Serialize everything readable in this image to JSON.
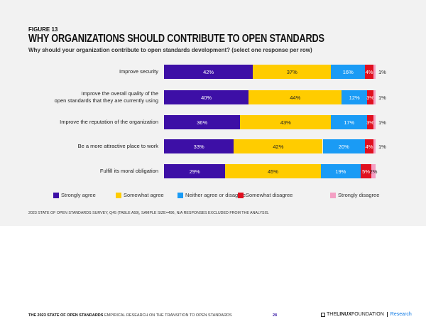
{
  "figure_label": "FIGURE 13",
  "footer": {
    "bold": "THE 2023 STATE OF OPEN STANDARDS",
    "rest": "EMPIRICAL RESEARCH ON THE TRANSITION TO OPEN STANDARDS",
    "page": "28",
    "logo_the": "THE",
    "logo_linux": "LINUX",
    "logo_foundation": "FOUNDATION",
    "logo_research": "Research"
  },
  "note": "2023 STATE OF OPEN STANDARDS SURVEY, Q45 (TABLE A59), SAMPLE SIZE=496, N/A RESPONSES EXCLUDED FROM THE ANALYSIS.",
  "chart_data": {
    "type": "bar",
    "stacked": true,
    "orientation": "horizontal",
    "title": "WHY ORGANIZATIONS SHOULD CONTRIBUTE TO OPEN STANDARDS",
    "subtitle": "Why should your organization contribute to open standards development? (select one response per row)",
    "categories": [
      "Improve security",
      "Improve the overall quality of the open standards that they are currently using",
      "Improve the reputation of the organization",
      "Be a more attractive place to work",
      "Fulfill its moral obligation"
    ],
    "category_lines": [
      [
        "Improve security"
      ],
      [
        "Improve the overall quality of the",
        "open standards that they are currently using"
      ],
      [
        "Improve the reputation of the organization"
      ],
      [
        "Be a more attractive place to work"
      ],
      [
        "Fulfill its moral obligation"
      ]
    ],
    "series": [
      {
        "name": "Strongly agree",
        "color": "#3d0fa6",
        "values": [
          42,
          40,
          36,
          33,
          29
        ]
      },
      {
        "name": "Somewhat agree",
        "color": "#ffcc00",
        "values": [
          37,
          44,
          43,
          42,
          45
        ]
      },
      {
        "name": "Neither agree or disagree",
        "color": "#1a9bf5",
        "values": [
          16,
          12,
          17,
          20,
          19
        ]
      },
      {
        "name": "Somewhat disagree",
        "color": "#e0101f",
        "values": [
          4,
          3,
          3,
          4,
          5
        ]
      },
      {
        "name": "Strongly disagree",
        "color": "#f4a0c4",
        "values": [
          1,
          1,
          1,
          1,
          2
        ]
      }
    ],
    "xlim": [
      0,
      100
    ],
    "unit": "%",
    "legend": "bottom"
  }
}
